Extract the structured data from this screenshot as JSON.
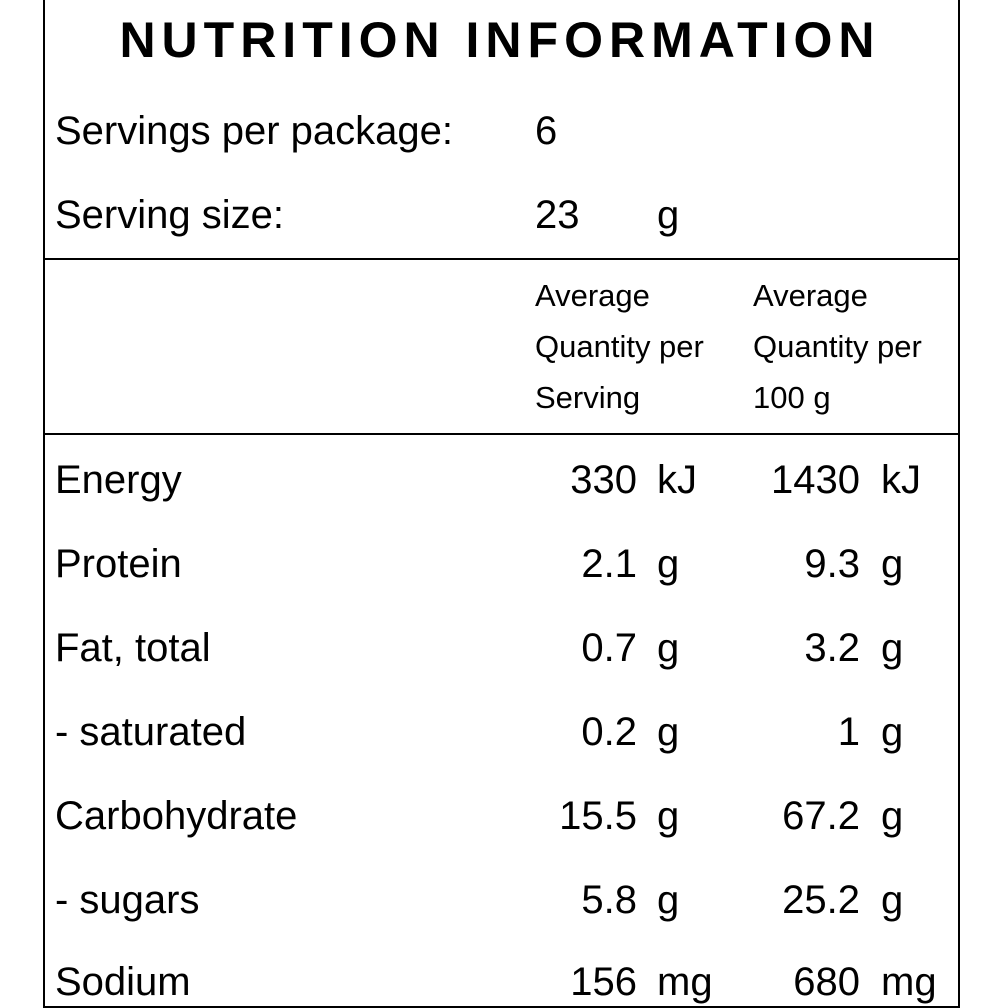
{
  "title": "NUTRITION INFORMATION",
  "servings_per_package": {
    "label": "Servings per package:",
    "value": "6"
  },
  "serving_size": {
    "label": "Serving size:",
    "value": "23",
    "unit": "g"
  },
  "columns": [
    {
      "line1": "Average",
      "line2": "Quantity per",
      "line3": "Serving"
    },
    {
      "line1": "Average",
      "line2": "Quantity per",
      "line3": "100 g"
    }
  ],
  "rows": [
    {
      "name": "Energy",
      "per_serving": "330",
      "per_serving_unit": "kJ",
      "per_100g": "1430",
      "per_100g_unit": "kJ"
    },
    {
      "name": "Protein",
      "per_serving": "2.1",
      "per_serving_unit": "g",
      "per_100g": "9.3",
      "per_100g_unit": "g"
    },
    {
      "name": "Fat, total",
      "per_serving": "0.7",
      "per_serving_unit": "g",
      "per_100g": "3.2",
      "per_100g_unit": "g"
    },
    {
      "name": "- saturated",
      "per_serving": "0.2",
      "per_serving_unit": "g",
      "per_100g": "1",
      "per_100g_unit": "g"
    },
    {
      "name": "Carbohydrate",
      "per_serving": "15.5",
      "per_serving_unit": "g",
      "per_100g": "67.2",
      "per_100g_unit": "g"
    },
    {
      "name": "- sugars",
      "per_serving": "5.8",
      "per_serving_unit": "g",
      "per_100g": "25.2",
      "per_100g_unit": "g"
    },
    {
      "name": "Sodium",
      "per_serving": "156",
      "per_serving_unit": "mg",
      "per_100g": "680",
      "per_100g_unit": "mg"
    }
  ]
}
